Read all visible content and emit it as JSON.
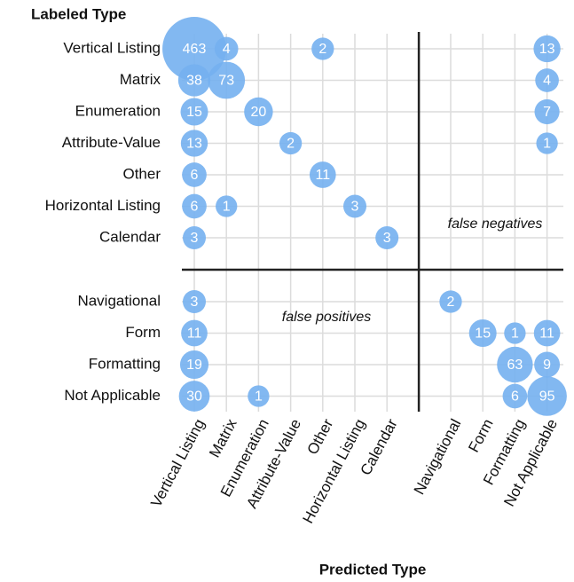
{
  "chart_data": {
    "type": "bubble-matrix",
    "y_label": "Labeled Type",
    "x_label": "Predicted Type",
    "rows": [
      "Vertical Listing",
      "Matrix",
      "Enumeration",
      "Attribute-Value",
      "Other",
      "Horizontal Listing",
      "Calendar",
      "Navigational",
      "Form",
      "Formatting",
      "Not Applicable"
    ],
    "columns": [
      "Vertical Listing",
      "Matrix",
      "Enumeration",
      "Attribute-Value",
      "Other",
      "Horizontal Listing",
      "Calendar",
      "Navigational",
      "Form",
      "Formatting",
      "Not Applicable"
    ],
    "values": [
      [
        463,
        4,
        null,
        null,
        2,
        null,
        null,
        null,
        null,
        null,
        13
      ],
      [
        38,
        73,
        null,
        null,
        null,
        null,
        null,
        null,
        null,
        null,
        4
      ],
      [
        15,
        null,
        20,
        null,
        null,
        null,
        null,
        null,
        null,
        null,
        7
      ],
      [
        13,
        null,
        null,
        2,
        null,
        null,
        null,
        null,
        null,
        null,
        1
      ],
      [
        6,
        null,
        null,
        null,
        11,
        null,
        null,
        null,
        null,
        null,
        null
      ],
      [
        6,
        1,
        null,
        null,
        null,
        3,
        null,
        null,
        null,
        null,
        null
      ],
      [
        3,
        null,
        null,
        null,
        null,
        null,
        3,
        null,
        null,
        null,
        null
      ],
      [
        3,
        null,
        null,
        null,
        null,
        null,
        null,
        2,
        null,
        null,
        null
      ],
      [
        11,
        null,
        null,
        null,
        null,
        null,
        null,
        null,
        15,
        1,
        11
      ],
      [
        19,
        null,
        null,
        null,
        null,
        null,
        null,
        null,
        null,
        63,
        9
      ],
      [
        30,
        null,
        1,
        null,
        null,
        null,
        null,
        null,
        null,
        6,
        95
      ]
    ],
    "color": "#74b0f0",
    "annotations": [
      "false negatives",
      "false positives"
    ],
    "grid": true
  }
}
